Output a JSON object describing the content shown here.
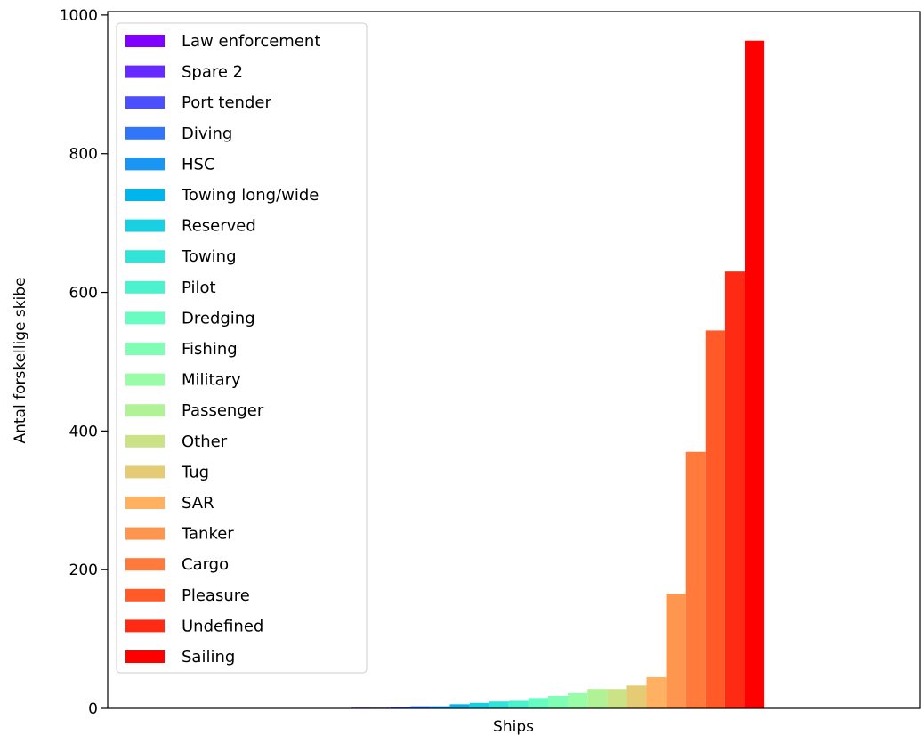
{
  "chart_data": {
    "type": "bar",
    "xlabel": "Ships",
    "ylabel": "Antal forskellige skibe",
    "ylim": [
      0,
      1005
    ],
    "yticks": [
      0,
      200,
      400,
      600,
      800,
      1000
    ],
    "legend_position": "top-left",
    "grid": false,
    "series": [
      {
        "name": "Law enforcement",
        "value": 1,
        "color": "#8000ff"
      },
      {
        "name": "Spare 2",
        "value": 1,
        "color": "#6629fe"
      },
      {
        "name": "Port tender",
        "value": 2,
        "color": "#4c50fc"
      },
      {
        "name": "Diving",
        "value": 3,
        "color": "#3176f8"
      },
      {
        "name": "HSC",
        "value": 3,
        "color": "#1996f3"
      },
      {
        "name": "Towing long/wide",
        "value": 6,
        "color": "#00b5eb"
      },
      {
        "name": "Reserved",
        "value": 8,
        "color": "#19cfe2"
      },
      {
        "name": "Towing",
        "value": 10,
        "color": "#32e3d8"
      },
      {
        "name": "Pilot",
        "value": 11,
        "color": "#4cf2ce"
      },
      {
        "name": "Dredging",
        "value": 15,
        "color": "#66fcc2"
      },
      {
        "name": "Fishing",
        "value": 18,
        "color": "#80feb3"
      },
      {
        "name": "Military",
        "value": 22,
        "color": "#99fca6"
      },
      {
        "name": "Passenger",
        "value": 28,
        "color": "#b2f296"
      },
      {
        "name": "Other",
        "value": 28,
        "color": "#cce286"
      },
      {
        "name": "Tug",
        "value": 33,
        "color": "#e6cb75"
      },
      {
        "name": "SAR",
        "value": 45,
        "color": "#ffb061"
      },
      {
        "name": "Tanker",
        "value": 165,
        "color": "#ff964f"
      },
      {
        "name": "Cargo",
        "value": 370,
        "color": "#ff7a3b"
      },
      {
        "name": "Pleasure",
        "value": 545,
        "color": "#ff5a28"
      },
      {
        "name": "Undefined",
        "value": 630,
        "color": "#ff2a14"
      },
      {
        "name": "Sailing",
        "value": 963,
        "color": "#ff0000"
      }
    ]
  }
}
